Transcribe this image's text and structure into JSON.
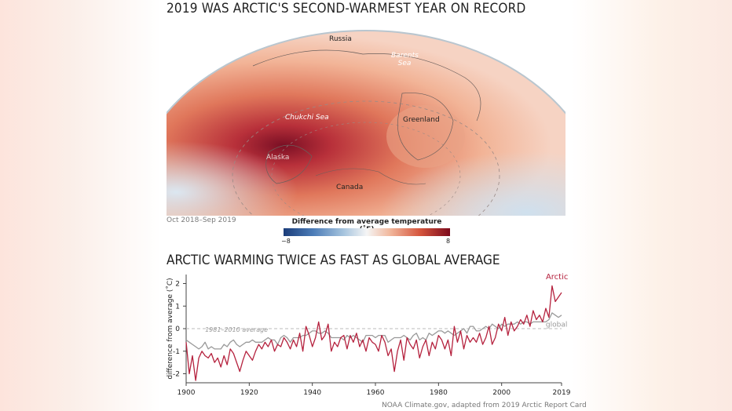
{
  "map_panel": {
    "title": "2019 WAS ARCTIC'S SECOND-WARMEST YEAR ON RECORD",
    "labels": {
      "russia": "Russia",
      "barents": "Barents Sea",
      "chukchi": "Chukchi Sea",
      "greenland": "Greenland",
      "alaska": "Alaska",
      "canada": "Canada"
    },
    "period": "Oct 2018–Sep 2019",
    "colorbar": {
      "title": "Difference from average temperature (˚F)",
      "min_label": "−8",
      "max_label": "8",
      "colors": [
        "#1b3d7a",
        "#f5f5f5",
        "#7d0a1c"
      ]
    }
  },
  "chart_data": {
    "type": "line",
    "title": "ARCTIC WARMING TWICE AS FAST AS GLOBAL AVERAGE",
    "ylabel": "difference from average (˚C)",
    "xlabel": "",
    "xlim": [
      1900,
      2019
    ],
    "ylim": [
      -2.4,
      2.4
    ],
    "xticks": [
      "1900",
      "1920",
      "1940",
      "1960",
      "1980",
      "2000",
      "2019"
    ],
    "yticks": [
      "2",
      "1",
      "0",
      "-1",
      "-2"
    ],
    "reference_line": {
      "value": 0,
      "label": "1981–2010 average"
    },
    "series": [
      {
        "name": "Arctic",
        "color": "#b5223e",
        "x_start": 1900,
        "values": [
          -0.6,
          -2.0,
          -1.2,
          -2.3,
          -1.3,
          -1.0,
          -1.2,
          -1.3,
          -1.1,
          -1.5,
          -1.3,
          -1.7,
          -1.2,
          -1.6,
          -0.9,
          -1.1,
          -1.5,
          -1.9,
          -1.4,
          -1.0,
          -1.2,
          -1.4,
          -1.0,
          -0.7,
          -0.9,
          -0.6,
          -0.8,
          -0.5,
          -1.0,
          -0.7,
          -0.8,
          -0.4,
          -0.6,
          -0.9,
          -0.5,
          -0.8,
          -0.2,
          -1.0,
          0.1,
          -0.3,
          -0.8,
          -0.4,
          0.3,
          -0.5,
          -0.3,
          0.2,
          -1.0,
          -0.6,
          -0.8,
          -0.4,
          -0.3,
          -0.9,
          -0.3,
          -0.6,
          -0.2,
          -0.8,
          -0.5,
          -1.0,
          -0.4,
          -0.6,
          -0.7,
          -1.0,
          -0.3,
          -0.6,
          -1.2,
          -0.9,
          -1.9,
          -1.0,
          -0.5,
          -1.4,
          -0.4,
          -0.7,
          -0.9,
          -0.5,
          -1.3,
          -0.8,
          -0.5,
          -1.2,
          -0.6,
          -0.9,
          -0.3,
          -0.5,
          -0.9,
          -0.5,
          -1.2,
          0.1,
          -0.6,
          -0.1,
          -0.9,
          -0.3,
          -0.6,
          -0.4,
          -0.6,
          -0.2,
          -0.7,
          -0.4,
          0.1,
          -0.7,
          -0.4,
          0.2,
          -0.1,
          0.5,
          -0.3,
          0.3,
          -0.1,
          0.1,
          0.4,
          0.2,
          0.6,
          0.1,
          0.8,
          0.4,
          0.6,
          0.3,
          0.9,
          0.5,
          1.9,
          1.2,
          1.4,
          1.6
        ]
      },
      {
        "name": "global",
        "color": "#999999",
        "x_start": 1900,
        "values": [
          -0.5,
          -0.6,
          -0.7,
          -0.8,
          -0.9,
          -0.8,
          -0.6,
          -0.9,
          -0.8,
          -0.9,
          -0.9,
          -0.9,
          -0.7,
          -0.8,
          -0.6,
          -0.5,
          -0.7,
          -0.8,
          -0.7,
          -0.6,
          -0.6,
          -0.5,
          -0.6,
          -0.6,
          -0.6,
          -0.5,
          -0.4,
          -0.5,
          -0.5,
          -0.7,
          -0.4,
          -0.3,
          -0.4,
          -0.6,
          -0.4,
          -0.4,
          -0.4,
          -0.3,
          -0.3,
          -0.2,
          -0.1,
          -0.1,
          -0.2,
          -0.2,
          -0.1,
          -0.2,
          -0.4,
          -0.4,
          -0.4,
          -0.4,
          -0.5,
          -0.3,
          -0.4,
          -0.3,
          -0.4,
          -0.5,
          -0.6,
          -0.3,
          -0.3,
          -0.3,
          -0.4,
          -0.3,
          -0.3,
          -0.3,
          -0.6,
          -0.5,
          -0.4,
          -0.4,
          -0.4,
          -0.3,
          -0.4,
          -0.5,
          -0.3,
          -0.2,
          -0.5,
          -0.4,
          -0.5,
          -0.2,
          -0.3,
          -0.2,
          -0.1,
          -0.1,
          -0.2,
          -0.1,
          -0.2,
          -0.3,
          -0.2,
          -0.1,
          0.0,
          -0.2,
          0.1,
          0.1,
          -0.1,
          -0.1,
          0.0,
          0.1,
          0.0,
          0.2,
          0.1,
          0.0,
          0.2,
          0.1,
          0.2,
          0.2,
          0.2,
          0.3,
          0.2,
          0.3,
          0.3,
          0.2,
          0.3,
          0.3,
          0.3,
          0.3,
          0.3,
          0.4,
          0.7,
          0.6,
          0.5,
          0.6
        ]
      }
    ]
  },
  "credit": "NOAA Climate.gov, adapted from 2019 Arctic Report Card"
}
